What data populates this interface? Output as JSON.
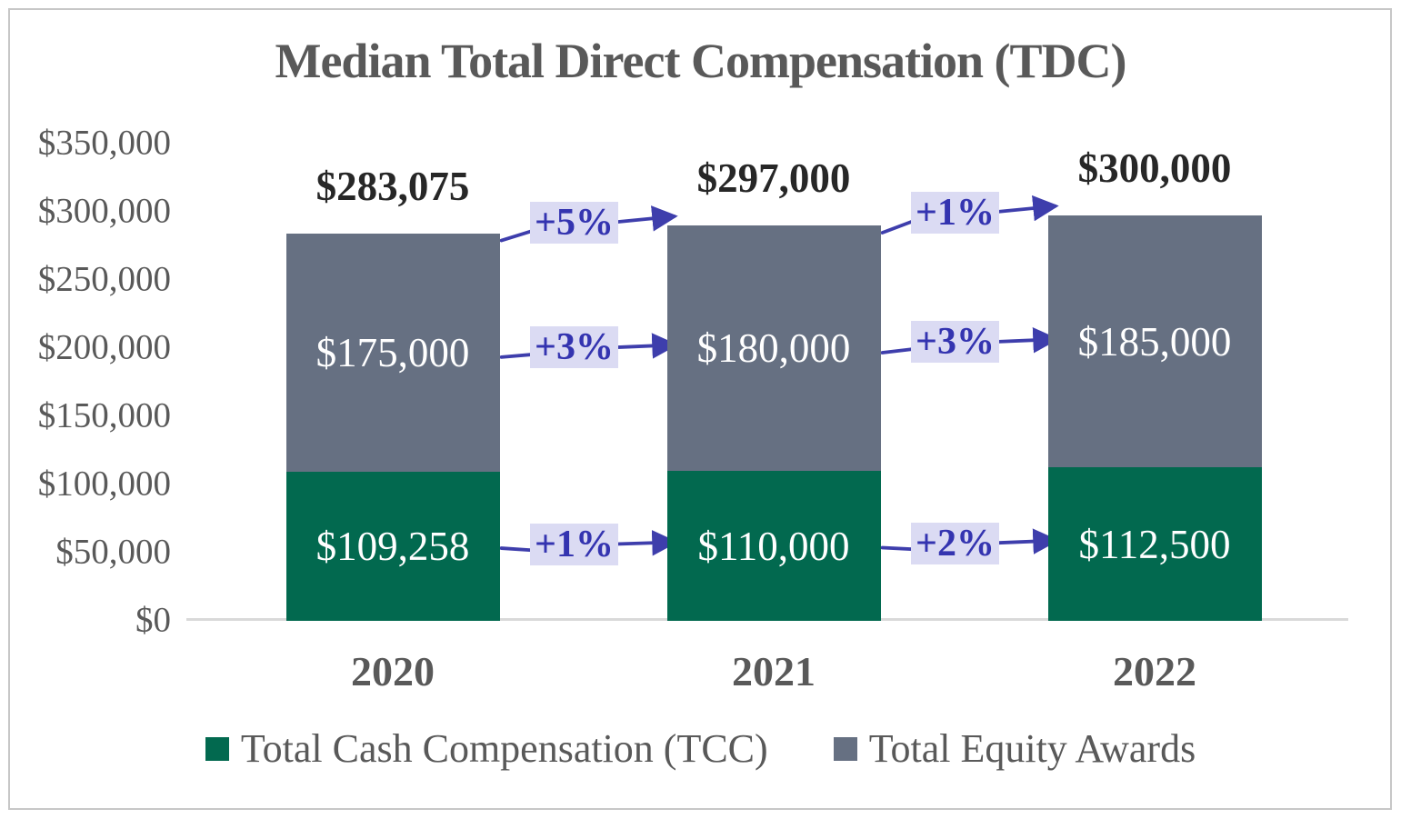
{
  "chart_data": {
    "type": "bar",
    "stacked": true,
    "title": "Median Total Direct Compensation (TDC)",
    "xlabel": "",
    "ylabel": "",
    "categories": [
      "2020",
      "2021",
      "2022"
    ],
    "series": [
      {
        "name": "Total Cash Compensation (TCC)",
        "key": "cash",
        "color": "#02694F",
        "values": [
          109258,
          110000,
          112500
        ],
        "labels": [
          "$109,258",
          "$110,000",
          "$112,500"
        ]
      },
      {
        "name": "Total Equity Awards",
        "key": "equity",
        "color": "#667082",
        "values": [
          175000,
          180000,
          185000
        ],
        "labels": [
          "$175,000",
          "$180,000",
          "$185,000"
        ]
      }
    ],
    "totals": {
      "values": [
        283075,
        297000,
        300000
      ],
      "labels": [
        "$283,075",
        "$297,000",
        "$300,000"
      ]
    },
    "y_axis": {
      "min": 0,
      "max": 350000,
      "step": 50000,
      "tick_labels": [
        "$0",
        "$50,000",
        "$100,000",
        "$150,000",
        "$200,000",
        "$250,000",
        "$300,000",
        "$350,000"
      ]
    },
    "grid": false,
    "legend_position": "bottom",
    "legend": [
      {
        "label": "Total Cash Compensation (TCC)",
        "color": "#02694F"
      },
      {
        "label": "Total Equity Awards",
        "color": "#667082"
      }
    ],
    "annotations": [
      {
        "row": "total",
        "from": 0,
        "to": 1,
        "label": "+5%"
      },
      {
        "row": "total",
        "from": 1,
        "to": 2,
        "label": "+1%"
      },
      {
        "row": "equity",
        "from": 0,
        "to": 1,
        "label": "+3%"
      },
      {
        "row": "equity",
        "from": 1,
        "to": 2,
        "label": "+3%"
      },
      {
        "row": "cash",
        "from": 0,
        "to": 1,
        "label": "+1%"
      },
      {
        "row": "cash",
        "from": 1,
        "to": 2,
        "label": "+2%"
      }
    ],
    "colors": {
      "annotation_text": "#3434B0",
      "annotation_bg": "#DBDBF3",
      "arrow": "#3E3EAC",
      "title_text": "#595959",
      "axis_text": "#595959",
      "total_label_text": "#272727",
      "bar_label_text": "#FFFFFF",
      "axis_line": "#D9D9D9",
      "frame_border": "#C7C7C7"
    }
  }
}
